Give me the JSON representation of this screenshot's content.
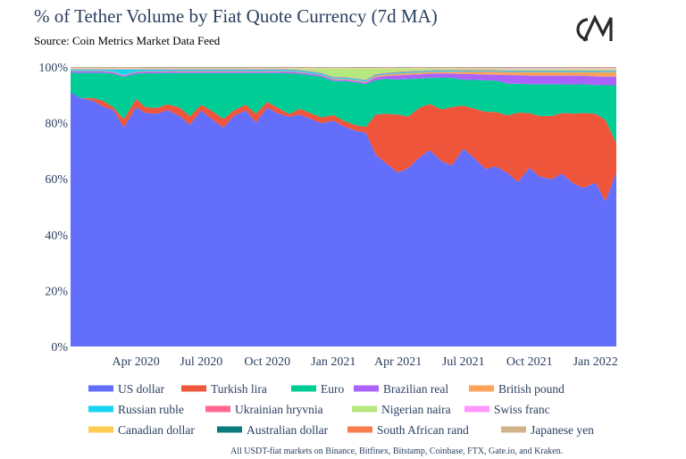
{
  "header": {
    "title": "% of Tether Volume by Fiat Quote Currency (7d MA)",
    "subtitle": "Source: Coin Metrics Market Data Feed",
    "logo_text": "CM",
    "footnote": "All USDT-fiat markets on Binance, Bitfinex, Bitstamp, Coinbase, FTX, Gate.io, and Kraken."
  },
  "chart_data": {
    "type": "area",
    "stacked": true,
    "normalized_percent": true,
    "title": "% of Tether Volume by Fiat Quote Currency (7d MA)",
    "subtitle": "Source: Coin Metrics Market Data Feed",
    "xlabel": "",
    "ylabel": "",
    "ylim": [
      0,
      100
    ],
    "y_ticks": [
      "0%",
      "20%",
      "40%",
      "60%",
      "80%",
      "100%"
    ],
    "x_ticks": [
      "Apr 2020",
      "Jul 2020",
      "Oct 2020",
      "Jan 2021",
      "Apr 2021",
      "Jul 2021",
      "Oct 2021",
      "Jan 2022"
    ],
    "x": [
      "2020-01-01",
      "2020-01-15",
      "2020-02-01",
      "2020-02-15",
      "2020-03-01",
      "2020-03-15",
      "2020-04-01",
      "2020-04-15",
      "2020-05-01",
      "2020-05-15",
      "2020-06-01",
      "2020-06-15",
      "2020-07-01",
      "2020-07-15",
      "2020-08-01",
      "2020-08-15",
      "2020-09-01",
      "2020-09-15",
      "2020-10-01",
      "2020-10-15",
      "2020-11-01",
      "2020-11-15",
      "2020-12-01",
      "2020-12-15",
      "2021-01-01",
      "2021-01-15",
      "2021-02-01",
      "2021-02-15",
      "2021-03-01",
      "2021-03-15",
      "2021-04-01",
      "2021-04-15",
      "2021-05-01",
      "2021-05-15",
      "2021-06-01",
      "2021-06-15",
      "2021-07-01",
      "2021-07-15",
      "2021-08-01",
      "2021-08-15",
      "2021-09-01",
      "2021-09-15",
      "2021-10-01",
      "2021-10-15",
      "2021-11-01",
      "2021-11-15",
      "2021-12-01",
      "2021-12-15",
      "2022-01-01",
      "2022-01-15",
      "2022-01-30"
    ],
    "series": [
      {
        "name": "US dollar",
        "color": "#636efa",
        "values": [
          91,
          89,
          88,
          86,
          84,
          78,
          85,
          82,
          81,
          83,
          80,
          77,
          82,
          79,
          76,
          80,
          82,
          77,
          83,
          81,
          79,
          80,
          78,
          77,
          80,
          78,
          76,
          75,
          67,
          63,
          60,
          62,
          65,
          68,
          64,
          62,
          69,
          66,
          62,
          63,
          60,
          57,
          62,
          59,
          58,
          60,
          56,
          55,
          57,
          50,
          60
        ]
      },
      {
        "name": "Turkish lira",
        "color": "#ef553b",
        "values": [
          0,
          0,
          1,
          2,
          1,
          3,
          3,
          2,
          2,
          2,
          3,
          3,
          2,
          3,
          3,
          2,
          2,
          3,
          2,
          2,
          1,
          2,
          2,
          2,
          2,
          2,
          2,
          2,
          14,
          17,
          20,
          18,
          17,
          16,
          18,
          20,
          15,
          17,
          20,
          19,
          20,
          24,
          19,
          21,
          22,
          21,
          24,
          26,
          24,
          28,
          10
        ]
      },
      {
        "name": "Euro",
        "color": "#00cc96",
        "values": [
          7,
          9,
          9,
          10,
          12,
          15,
          9,
          12,
          12,
          11,
          12,
          15,
          11,
          13,
          16,
          13,
          11,
          14,
          10,
          12,
          14,
          12,
          13,
          14,
          12,
          14,
          15,
          15,
          12,
          12,
          12,
          13,
          10,
          9,
          11,
          10,
          9,
          10,
          11,
          11,
          11,
          10,
          10,
          11,
          11,
          10,
          10,
          10,
          10,
          12,
          20
        ]
      },
      {
        "name": "Brazilian real",
        "color": "#ab63fa",
        "values": [
          0.5,
          0.5,
          0.5,
          0.5,
          0.5,
          0.5,
          0.5,
          0.5,
          0.5,
          0.5,
          0.5,
          0.5,
          0.5,
          0.5,
          0.5,
          0.5,
          0.5,
          0.5,
          0.5,
          0.5,
          0.5,
          0.5,
          0.5,
          0.5,
          0.5,
          0.5,
          0.5,
          0.5,
          1,
          1,
          1.5,
          1.5,
          1.5,
          1.5,
          1.5,
          1.5,
          2,
          2,
          2,
          2,
          3,
          3,
          3,
          3,
          3,
          3,
          3,
          3,
          3,
          3,
          3
        ]
      },
      {
        "name": "British pound",
        "color": "#ffa15a",
        "values": [
          0.2,
          0.2,
          0.2,
          0.2,
          0.2,
          0.2,
          0.2,
          0.2,
          0.2,
          0.2,
          0.2,
          0.2,
          0.2,
          0.2,
          0.2,
          0.2,
          0.2,
          0.2,
          0.2,
          0.2,
          0.2,
          0.2,
          0.2,
          0.2,
          0.3,
          0.3,
          0.3,
          0.3,
          0.5,
          0.5,
          0.6,
          0.6,
          0.6,
          0.6,
          0.6,
          0.6,
          0.8,
          0.8,
          1,
          1,
          1,
          1,
          1.2,
          1.2,
          1.2,
          1.2,
          1.2,
          1.2,
          1.5,
          1.5,
          1.5
        ]
      },
      {
        "name": "Russian ruble",
        "color": "#19d3f3",
        "values": [
          0.5,
          0.5,
          0.5,
          0.5,
          0.8,
          2,
          0.8,
          0.6,
          0.6,
          0.5,
          0.5,
          0.5,
          0.5,
          0.5,
          0.5,
          0.5,
          0.5,
          0.5,
          0.5,
          0.5,
          0.5,
          0.5,
          0.5,
          0.5,
          0.5,
          0.5,
          0.5,
          0.5,
          0.4,
          0.4,
          0.4,
          0.4,
          0.4,
          0.4,
          0.4,
          0.4,
          0.4,
          0.4,
          0.4,
          0.4,
          0.4,
          0.4,
          0.4,
          0.4,
          0.4,
          0.4,
          0.4,
          0.4,
          0.4,
          0.4,
          0.4
        ]
      },
      {
        "name": "Ukrainian hryvnia",
        "color": "#ff6692",
        "values": [
          0.2,
          0.2,
          0.2,
          0.2,
          0.2,
          0.2,
          0.2,
          0.2,
          0.2,
          0.2,
          0.2,
          0.2,
          0.2,
          0.2,
          0.2,
          0.2,
          0.2,
          0.2,
          0.2,
          0.2,
          0.2,
          0.2,
          0.2,
          0.2,
          0.2,
          0.2,
          0.2,
          0.2,
          0.2,
          0.2,
          0.2,
          0.2,
          0.2,
          0.2,
          0.2,
          0.2,
          0.2,
          0.2,
          0.2,
          0.2,
          0.2,
          0.2,
          0.2,
          0.2,
          0.2,
          0.2,
          0.2,
          0.2,
          0.2,
          0.2,
          0.2
        ]
      },
      {
        "name": "Nigerian naira",
        "color": "#b6e880",
        "values": [
          0.2,
          0.2,
          0.2,
          0.2,
          0.2,
          0.2,
          0.2,
          0.2,
          0.2,
          0.2,
          0.2,
          0.2,
          0.2,
          0.2,
          0.2,
          0.2,
          0.2,
          0.2,
          0.2,
          0.2,
          0.3,
          0.5,
          1,
          1.5,
          3,
          3,
          3.5,
          4,
          2,
          1.5,
          1.2,
          1,
          0.8,
          0.6,
          0.5,
          0.5,
          0.5,
          0.5,
          0.5,
          0.5,
          0.5,
          0.5,
          0.5,
          0.5,
          0.5,
          0.5,
          0.5,
          0.5,
          0.5,
          0.5,
          0.5
        ]
      },
      {
        "name": "Swiss franc",
        "color": "#ff97ff",
        "values": [
          0.1,
          0.1,
          0.1,
          0.1,
          0.1,
          0.1,
          0.1,
          0.1,
          0.1,
          0.1,
          0.1,
          0.1,
          0.1,
          0.1,
          0.1,
          0.1,
          0.1,
          0.1,
          0.1,
          0.1,
          0.1,
          0.1,
          0.1,
          0.1,
          0.1,
          0.1,
          0.1,
          0.1,
          0.1,
          0.1,
          0.1,
          0.1,
          0.1,
          0.1,
          0.1,
          0.1,
          0.2,
          0.2,
          0.2,
          0.2,
          0.3,
          0.3,
          0.3,
          0.3,
          0.3,
          0.3,
          0.3,
          0.3,
          0.3,
          0.3,
          0.3
        ]
      },
      {
        "name": "Canadian dollar",
        "color": "#fecb52",
        "values": [
          0.1,
          0.1,
          0.1,
          0.1,
          0.1,
          0.1,
          0.1,
          0.1,
          0.1,
          0.1,
          0.1,
          0.1,
          0.1,
          0.1,
          0.1,
          0.1,
          0.1,
          0.1,
          0.1,
          0.1,
          0.1,
          0.1,
          0.1,
          0.1,
          0.1,
          0.1,
          0.1,
          0.1,
          0.1,
          0.1,
          0.1,
          0.1,
          0.1,
          0.1,
          0.1,
          0.1,
          0.1,
          0.1,
          0.1,
          0.1,
          0.1,
          0.1,
          0.1,
          0.1,
          0.1,
          0.1,
          0.1,
          0.1,
          0.1,
          0.1,
          0.1
        ]
      },
      {
        "name": "Australian dollar",
        "color": "#0a7c7c",
        "values": [
          0.1,
          0.1,
          0.1,
          0.1,
          0.1,
          0.1,
          0.1,
          0.1,
          0.1,
          0.1,
          0.1,
          0.1,
          0.1,
          0.1,
          0.1,
          0.1,
          0.1,
          0.1,
          0.1,
          0.1,
          0.1,
          0.1,
          0.1,
          0.1,
          0.1,
          0.1,
          0.1,
          0.1,
          0.1,
          0.1,
          0.1,
          0.1,
          0.1,
          0.1,
          0.1,
          0.1,
          0.1,
          0.1,
          0.1,
          0.1,
          0.1,
          0.1,
          0.1,
          0.1,
          0.1,
          0.1,
          0.1,
          0.1,
          0.1,
          0.1,
          0.1
        ]
      },
      {
        "name": "South African rand",
        "color": "#f87d4e",
        "values": [
          0.1,
          0.1,
          0.1,
          0.1,
          0.1,
          0.1,
          0.1,
          0.1,
          0.1,
          0.1,
          0.1,
          0.1,
          0.1,
          0.1,
          0.1,
          0.1,
          0.1,
          0.1,
          0.1,
          0.1,
          0.1,
          0.1,
          0.1,
          0.1,
          0.1,
          0.1,
          0.1,
          0.1,
          0.1,
          0.1,
          0.1,
          0.1,
          0.1,
          0.1,
          0.1,
          0.1,
          0.1,
          0.1,
          0.1,
          0.1,
          0.1,
          0.1,
          0.1,
          0.1,
          0.1,
          0.1,
          0.1,
          0.1,
          0.1,
          0.1,
          0.1
        ]
      },
      {
        "name": "Japanese yen",
        "color": "#d2b48c",
        "values": [
          0.1,
          0.1,
          0.1,
          0.1,
          0.1,
          0.1,
          0.1,
          0.1,
          0.1,
          0.1,
          0.1,
          0.1,
          0.1,
          0.1,
          0.1,
          0.1,
          0.1,
          0.1,
          0.1,
          0.1,
          0.1,
          0.1,
          0.1,
          0.1,
          0.1,
          0.1,
          0.1,
          0.1,
          0.1,
          0.1,
          0.1,
          0.1,
          0.1,
          0.1,
          0.1,
          0.1,
          0.1,
          0.1,
          0.1,
          0.1,
          0.1,
          0.1,
          0.1,
          0.1,
          0.1,
          0.1,
          0.1,
          0.1,
          0.1,
          0.1,
          0.1
        ]
      }
    ],
    "grid": false,
    "legend_position": "bottom"
  }
}
